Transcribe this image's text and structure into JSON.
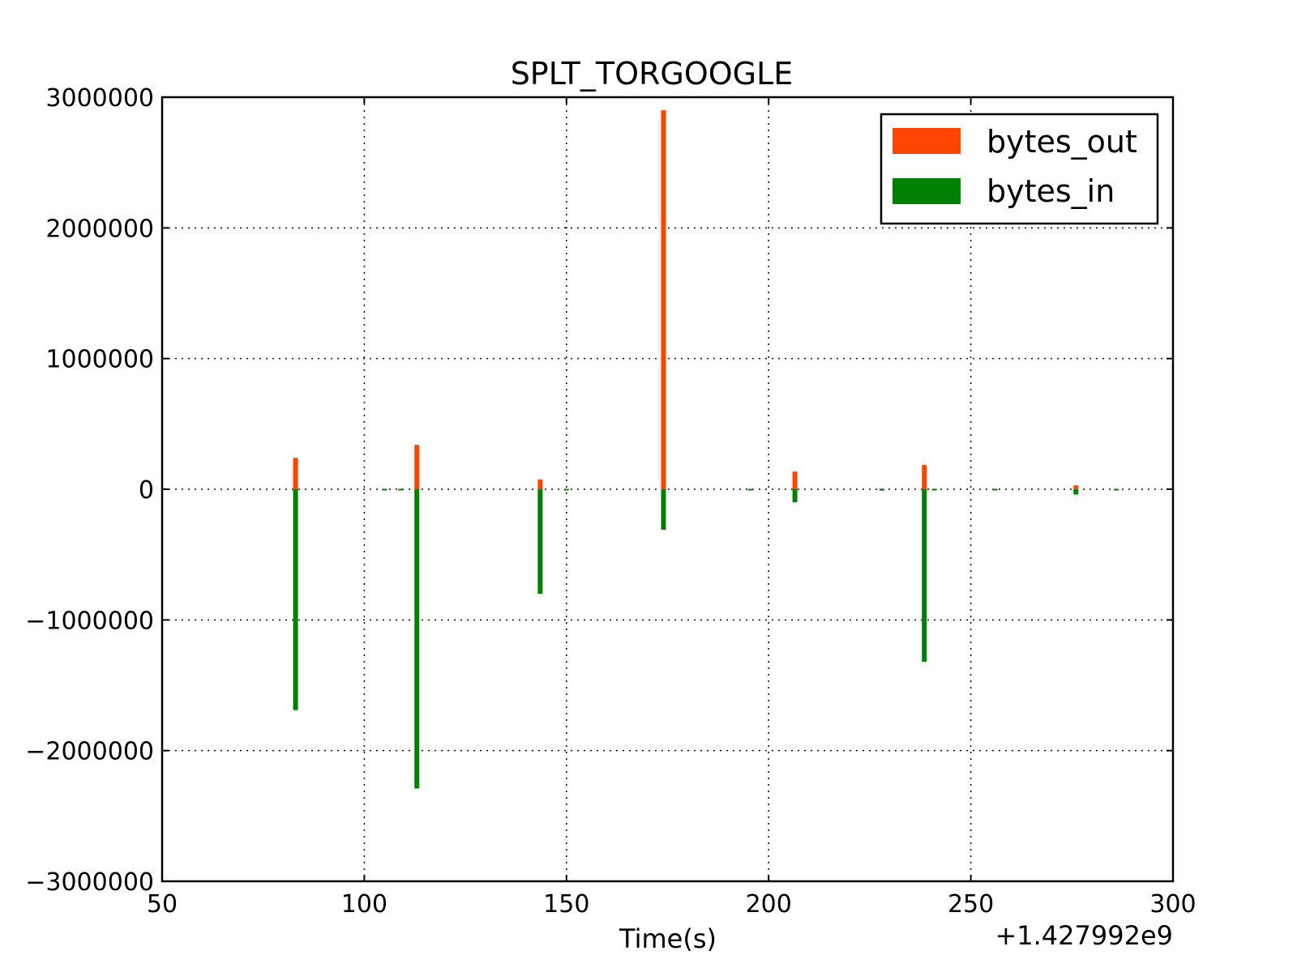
{
  "chart_data": {
    "type": "bar",
    "title": "SPLT_TORGOOGLE",
    "xlabel": "Time(s)",
    "ylabel": "",
    "x_offset_label": "+1.427992e9",
    "xlim": [
      50,
      300
    ],
    "ylim": [
      -3000000,
      3000000
    ],
    "xticks": [
      50,
      100,
      150,
      200,
      250,
      300
    ],
    "yticks": [
      3000000,
      2000000,
      1000000,
      0,
      -1000000,
      -2000000,
      -3000000
    ],
    "xtick_labels": [
      "50",
      "100",
      "150",
      "200",
      "250",
      "300"
    ],
    "ytick_labels": [
      "3000000",
      "2000000",
      "1000000",
      "0",
      "−1000000",
      "−2000000",
      "−3000000"
    ],
    "grid": true,
    "legend_position": "top-right",
    "series": [
      {
        "name": "bytes_out",
        "color": "#ff4500",
        "points": [
          {
            "x": 83,
            "y": 240000
          },
          {
            "x": 105,
            "y": 4000
          },
          {
            "x": 109,
            "y": 4000
          },
          {
            "x": 113,
            "y": 340000
          },
          {
            "x": 143.5,
            "y": 75000
          },
          {
            "x": 150,
            "y": 3000
          },
          {
            "x": 174,
            "y": 2900000
          },
          {
            "x": 195.5,
            "y": 4000
          },
          {
            "x": 206.5,
            "y": 135000
          },
          {
            "x": 228,
            "y": 5000
          },
          {
            "x": 238.5,
            "y": 185000
          },
          {
            "x": 241,
            "y": 4000
          },
          {
            "x": 256,
            "y": 4000
          },
          {
            "x": 276,
            "y": 30000
          },
          {
            "x": 286,
            "y": 3000
          }
        ]
      },
      {
        "name": "bytes_in",
        "color": "#008000",
        "points": [
          {
            "x": 83,
            "y": -1690000
          },
          {
            "x": 105,
            "y": -8000
          },
          {
            "x": 109,
            "y": -8000
          },
          {
            "x": 113,
            "y": -2290000
          },
          {
            "x": 143.5,
            "y": -800000
          },
          {
            "x": 150,
            "y": -6000
          },
          {
            "x": 174,
            "y": -310000
          },
          {
            "x": 195.5,
            "y": -6000
          },
          {
            "x": 206.5,
            "y": -100000
          },
          {
            "x": 228,
            "y": -10000
          },
          {
            "x": 238.5,
            "y": -1320000
          },
          {
            "x": 241,
            "y": -8000
          },
          {
            "x": 256,
            "y": -8000
          },
          {
            "x": 276,
            "y": -40000
          },
          {
            "x": 286,
            "y": -6000
          }
        ]
      }
    ]
  }
}
